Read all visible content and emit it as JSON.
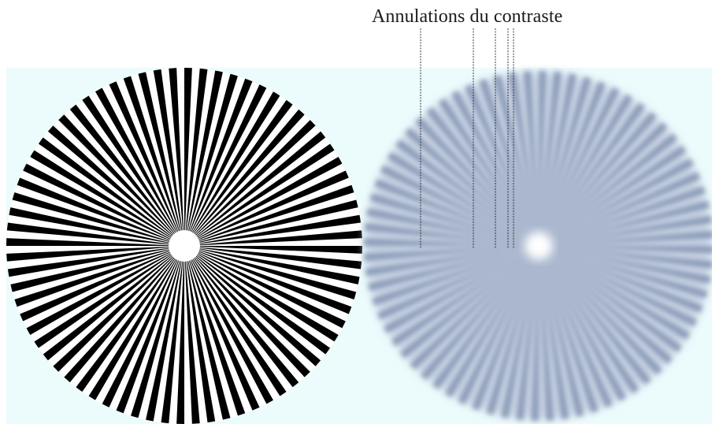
{
  "annotation": {
    "text": "Annulations du contraste",
    "contrast_reversal_count": 5
  },
  "siemens_star": {
    "spoke_pairs": 72,
    "sharp_colors": {
      "dark": "#000000",
      "light": "#ffffff"
    },
    "blurred_colors": {
      "dark": "#8c9cb8",
      "light": "#e9eef6"
    }
  },
  "colors": {
    "panel_background": "#ecfbfc",
    "leader_line": "#222222"
  }
}
